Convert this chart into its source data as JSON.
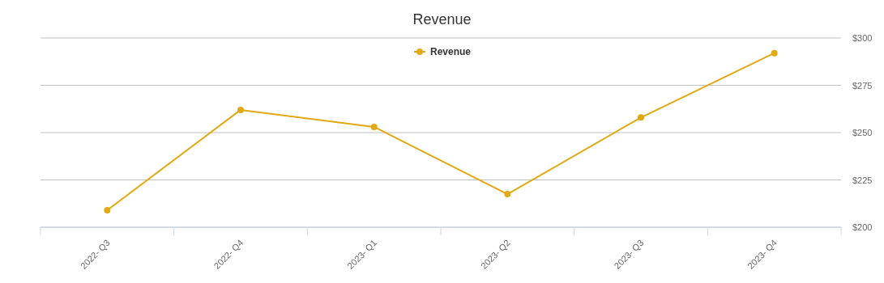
{
  "chart_data": {
    "type": "line",
    "title": "Revenue",
    "categories": [
      "2022- Q3",
      "2022- Q4",
      "2023- Q1",
      "2023- Q2",
      "2023- Q3",
      "2023- Q4"
    ],
    "series": [
      {
        "name": "Revenue",
        "color": "#e0a914",
        "values": [
          209,
          262,
          253,
          217.5,
          258,
          292
        ]
      }
    ],
    "ylim": [
      200,
      300
    ],
    "yticks": [
      {
        "value": 200,
        "label": "$200"
      },
      {
        "value": 225,
        "label": "$225"
      },
      {
        "value": 250,
        "label": "$250"
      },
      {
        "value": 275,
        "label": "$275"
      },
      {
        "value": 300,
        "label": "$300"
      }
    ],
    "grid": "y",
    "legend": "top",
    "marker": "circle"
  }
}
